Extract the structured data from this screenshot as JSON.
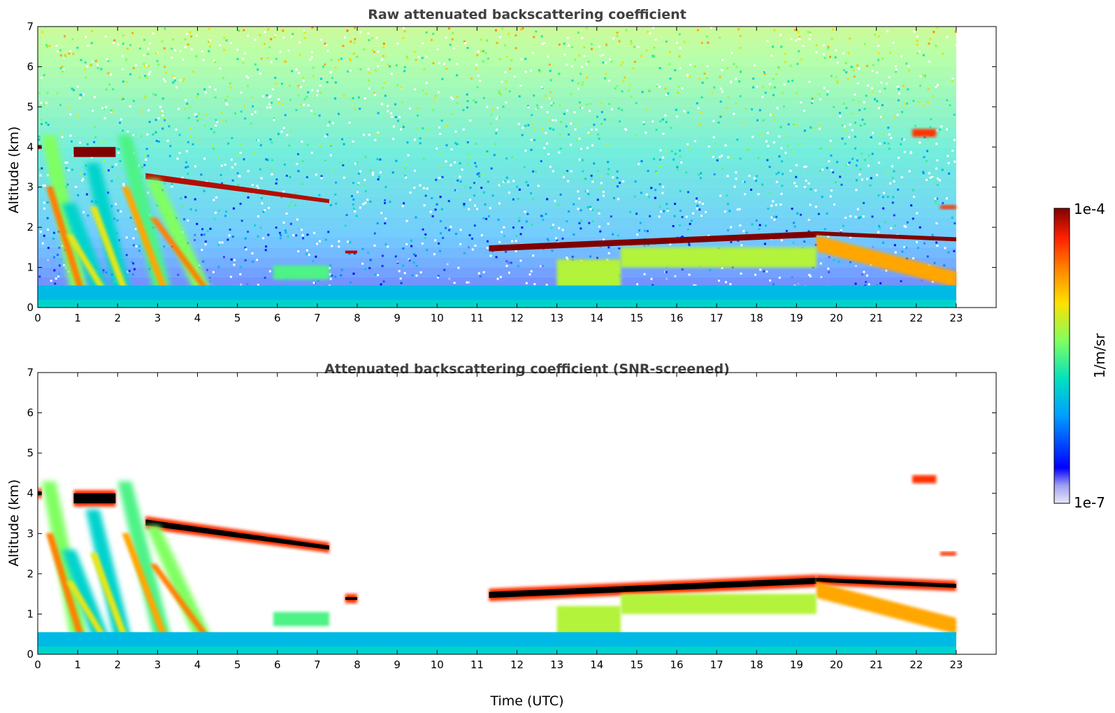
{
  "chart_data": [
    {
      "type": "heatmap",
      "title": "Raw attenuated backscattering coefficient",
      "xlabel": "",
      "ylabel": "Altitude (km)",
      "xlim": [
        0,
        24
      ],
      "ylim": [
        0,
        7
      ],
      "xticks": [
        "0",
        "1",
        "2",
        "3",
        "4",
        "5",
        "6",
        "7",
        "8",
        "9",
        "10",
        "11",
        "12",
        "13",
        "14",
        "15",
        "16",
        "17",
        "18",
        "19",
        "20",
        "21",
        "22",
        "23"
      ],
      "yticks": [
        "0",
        "1",
        "2",
        "3",
        "4",
        "5",
        "6",
        "7"
      ],
      "data_end_time": 23,
      "noise": true,
      "features": [
        {
          "kind": "layer",
          "t": [
            0.0,
            0.1
          ],
          "alt": [
            3.95,
            4.05
          ],
          "level": 1.0
        },
        {
          "kind": "layer",
          "t": [
            0.9,
            1.95
          ],
          "alt": [
            3.75,
            4.0
          ],
          "level": 1.0
        },
        {
          "kind": "layer",
          "t": [
            2.7,
            7.3
          ],
          "alt_start": [
            3.2,
            3.35
          ],
          "alt_end": [
            2.6,
            2.7
          ],
          "level": 0.95
        },
        {
          "kind": "layer",
          "t": [
            7.7,
            8.0
          ],
          "alt": [
            1.35,
            1.42
          ],
          "level": 0.95
        },
        {
          "kind": "layer",
          "t": [
            11.3,
            19.5
          ],
          "alt_start": [
            1.4,
            1.55
          ],
          "alt_end": [
            1.75,
            1.9
          ],
          "level": 1.0
        },
        {
          "kind": "layer",
          "t": [
            19.5,
            23.0
          ],
          "alt_start": [
            1.8,
            1.9
          ],
          "alt_end": [
            1.65,
            1.75
          ],
          "level": 1.0
        },
        {
          "kind": "layer",
          "t": [
            21.9,
            22.5
          ],
          "alt": [
            4.25,
            4.45
          ],
          "level": 0.85
        },
        {
          "kind": "layer",
          "t": [
            22.6,
            23.0
          ],
          "alt": [
            2.45,
            2.55
          ],
          "level": 0.85
        },
        {
          "kind": "layer",
          "t": [
            5.9,
            7.3
          ],
          "alt": [
            0.7,
            1.05
          ],
          "level": 0.45
        },
        {
          "kind": "layer",
          "t": [
            13.0,
            14.6
          ],
          "alt": [
            0.0,
            1.2
          ],
          "level": 0.55
        },
        {
          "kind": "layer",
          "t": [
            19.5,
            23.0
          ],
          "alt_start": [
            1.4,
            1.8
          ],
          "alt_end": [
            0.5,
            0.9
          ],
          "level": 0.7
        },
        {
          "kind": "layer",
          "t": [
            14.6,
            19.5
          ],
          "alt": [
            1.0,
            1.5
          ],
          "level": 0.55
        },
        {
          "kind": "streak",
          "t_top": 0.1,
          "t_bottom": 1.0,
          "alt_top": 4.3,
          "level": 0.75
        },
        {
          "kind": "streak",
          "t_top": 0.6,
          "t_bottom": 1.6,
          "alt_top": 2.6,
          "level": 0.6
        },
        {
          "kind": "streak",
          "t_top": 1.2,
          "t_bottom": 2.1,
          "alt_top": 3.6,
          "level": 0.6
        },
        {
          "kind": "streak",
          "t_top": 2.0,
          "t_bottom": 3.1,
          "alt_top": 4.3,
          "level": 0.7
        },
        {
          "kind": "streak",
          "t_top": 2.7,
          "t_bottom": 4.2,
          "alt_top": 3.2,
          "level": 0.75
        },
        {
          "kind": "boundary_layer",
          "t": [
            0,
            23
          ],
          "alt_top": 0.55,
          "level": 0.3
        }
      ]
    },
    {
      "type": "heatmap",
      "title": "Attenuated backscattering coefficient (SNR-screened)",
      "xlabel": "Time (UTC)",
      "ylabel": "Altitude (km)",
      "xlim": [
        0,
        24
      ],
      "ylim": [
        0,
        7
      ],
      "xticks": [
        "0",
        "1",
        "2",
        "3",
        "4",
        "5",
        "6",
        "7",
        "8",
        "9",
        "10",
        "11",
        "12",
        "13",
        "14",
        "15",
        "16",
        "17",
        "18",
        "19",
        "20",
        "21",
        "22",
        "23"
      ],
      "yticks": [
        "0",
        "1",
        "2",
        "3",
        "4",
        "5",
        "6",
        "7"
      ],
      "data_end_time": 23,
      "noise": false,
      "features": [
        {
          "kind": "layer",
          "t": [
            0.0,
            0.1
          ],
          "alt": [
            3.95,
            4.05
          ],
          "level": 1.05
        },
        {
          "kind": "layer",
          "t": [
            0.9,
            1.95
          ],
          "alt": [
            3.75,
            4.0
          ],
          "level": 1.05
        },
        {
          "kind": "layer",
          "t": [
            2.7,
            7.3
          ],
          "alt_start": [
            3.2,
            3.35
          ],
          "alt_end": [
            2.6,
            2.7
          ],
          "level": 1.05
        },
        {
          "kind": "layer",
          "t": [
            7.7,
            8.0
          ],
          "alt": [
            1.35,
            1.42
          ],
          "level": 1.05
        },
        {
          "kind": "layer",
          "t": [
            11.3,
            19.5
          ],
          "alt_start": [
            1.4,
            1.55
          ],
          "alt_end": [
            1.75,
            1.9
          ],
          "level": 1.05
        },
        {
          "kind": "layer",
          "t": [
            19.5,
            23.0
          ],
          "alt_start": [
            1.8,
            1.9
          ],
          "alt_end": [
            1.65,
            1.75
          ],
          "level": 1.05
        },
        {
          "kind": "layer",
          "t": [
            21.9,
            22.5
          ],
          "alt": [
            4.25,
            4.45
          ],
          "level": 0.85
        },
        {
          "kind": "layer",
          "t": [
            22.6,
            23.0
          ],
          "alt": [
            2.45,
            2.55
          ],
          "level": 0.85
        },
        {
          "kind": "layer",
          "t": [
            5.9,
            7.3
          ],
          "alt": [
            0.7,
            1.05
          ],
          "level": 0.45
        },
        {
          "kind": "layer",
          "t": [
            13.0,
            14.6
          ],
          "alt": [
            0.0,
            1.2
          ],
          "level": 0.55
        },
        {
          "kind": "layer",
          "t": [
            19.5,
            23.0
          ],
          "alt_start": [
            1.4,
            1.8
          ],
          "alt_end": [
            0.5,
            0.9
          ],
          "level": 0.7
        },
        {
          "kind": "layer",
          "t": [
            14.6,
            19.5
          ],
          "alt": [
            1.0,
            1.5
          ],
          "level": 0.55
        },
        {
          "kind": "streak",
          "t_top": 0.1,
          "t_bottom": 1.0,
          "alt_top": 4.3,
          "level": 0.75
        },
        {
          "kind": "streak",
          "t_top": 0.6,
          "t_bottom": 1.6,
          "alt_top": 2.6,
          "level": 0.6
        },
        {
          "kind": "streak",
          "t_top": 1.2,
          "t_bottom": 2.1,
          "alt_top": 3.6,
          "level": 0.6
        },
        {
          "kind": "streak",
          "t_top": 2.0,
          "t_bottom": 3.1,
          "alt_top": 4.3,
          "level": 0.7
        },
        {
          "kind": "streak",
          "t_top": 2.7,
          "t_bottom": 4.2,
          "alt_top": 3.2,
          "level": 0.75
        },
        {
          "kind": "boundary_layer",
          "t": [
            0,
            23
          ],
          "alt_top": 0.55,
          "level": 0.3
        }
      ]
    }
  ],
  "colorbar": {
    "label": "1/m/sr",
    "max_label": "1e-4",
    "min_label": "1e-7",
    "scale": "log",
    "range": [
      1e-07,
      0.0001
    ],
    "colormap": [
      "#e8e8f8",
      "#0000ff",
      "#00a0ff",
      "#00e0c0",
      "#80ff60",
      "#ffe000",
      "#ff8000",
      "#ff2000",
      "#800000"
    ]
  }
}
